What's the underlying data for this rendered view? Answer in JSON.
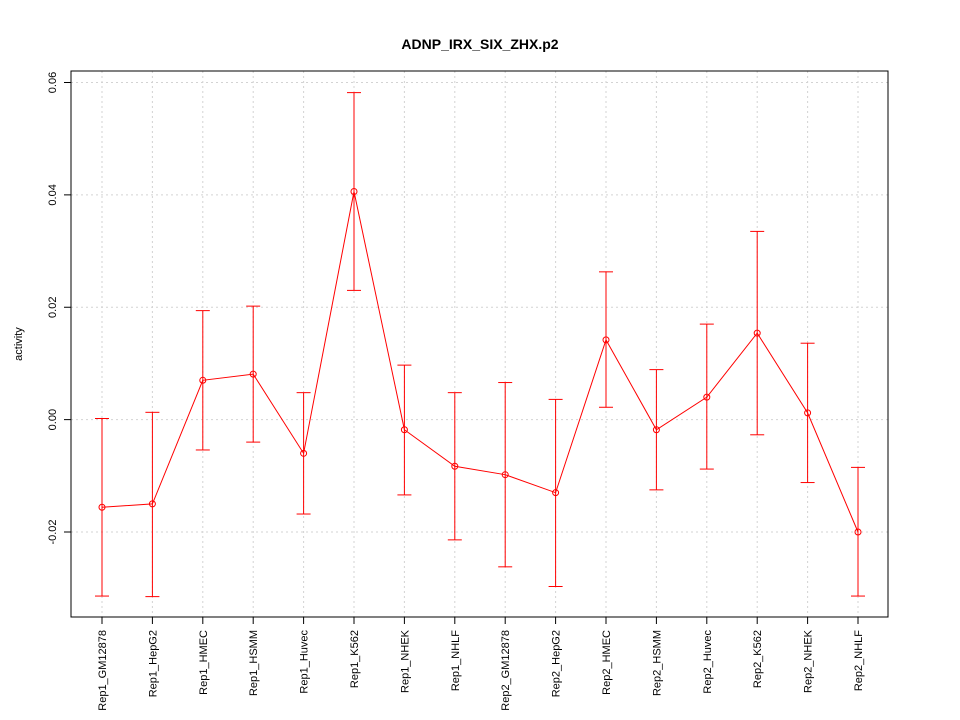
{
  "chart_data": {
    "type": "line",
    "title": "ADNP_IRX_SIX_ZHX.p2",
    "xlabel": "",
    "ylabel": "activity",
    "ylim": [
      -0.035,
      0.062
    ],
    "yticks": [
      -0.02,
      0.0,
      0.02,
      0.04,
      0.06
    ],
    "ytick_labels": [
      "-0.02",
      "0.00",
      "0.02",
      "0.04",
      "0.06"
    ],
    "grid": true,
    "series_color": "#ff0000",
    "categories": [
      "Rep1_GM12878",
      "Rep1_HepG2",
      "Rep1_HMEC",
      "Rep1_HSMM",
      "Rep1_Huvec",
      "Rep1_K562",
      "Rep1_NHEK",
      "Rep1_NHLF",
      "Rep2_GM12878",
      "Rep2_HepG2",
      "Rep2_HMEC",
      "Rep2_HSMM",
      "Rep2_Huvec",
      "Rep2_K562",
      "Rep2_NHEK",
      "Rep2_NHLF"
    ],
    "values": [
      -0.0156,
      -0.015,
      0.007,
      0.0081,
      -0.006,
      0.0406,
      -0.0018,
      -0.0083,
      -0.0098,
      -0.013,
      0.0142,
      -0.0018,
      0.004,
      0.0154,
      0.0012,
      -0.02
    ],
    "upper": [
      0.0002,
      0.0013,
      0.0194,
      0.0202,
      0.0048,
      0.0582,
      0.0097,
      0.0048,
      0.0066,
      0.0036,
      0.0263,
      0.0089,
      0.017,
      0.0335,
      0.0136,
      -0.0085
    ],
    "lower": [
      -0.0314,
      -0.0315,
      -0.0054,
      -0.004,
      -0.0168,
      0.023,
      -0.0134,
      -0.0214,
      -0.0262,
      -0.0297,
      0.0022,
      -0.0125,
      -0.0088,
      -0.0027,
      -0.0112,
      -0.0314
    ]
  }
}
